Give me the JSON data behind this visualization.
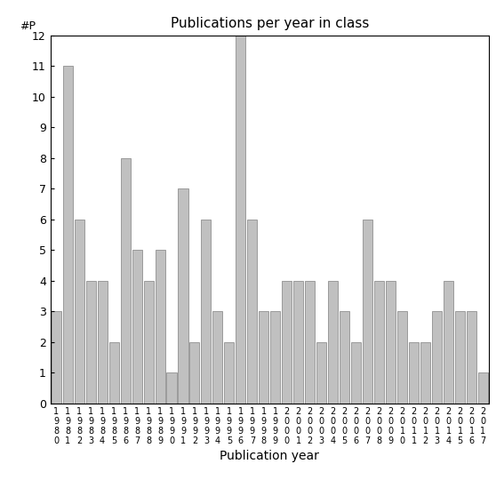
{
  "title": "Publications per year in class",
  "xlabel": "Publication year",
  "ylabel": "#P",
  "bar_color": "#c0c0c0",
  "edge_color": "#808080",
  "years": [
    1980,
    1981,
    1982,
    1983,
    1984,
    1985,
    1986,
    1987,
    1988,
    1989,
    1990,
    1991,
    1992,
    1993,
    1994,
    1995,
    1996,
    1997,
    1998,
    1999,
    2000,
    2001,
    2002,
    2003,
    2004,
    2005,
    2006,
    2007,
    2008,
    2009,
    2010,
    2011,
    2012,
    2013,
    2014,
    2015,
    2016,
    2017
  ],
  "values": [
    3,
    11,
    6,
    4,
    4,
    2,
    8,
    5,
    4,
    5,
    1,
    7,
    2,
    6,
    3,
    2,
    12,
    6,
    3,
    3,
    4,
    4,
    4,
    2,
    4,
    3,
    2,
    6,
    4,
    4,
    3,
    2,
    2,
    3,
    4,
    3,
    3,
    1
  ],
  "ylim": [
    0,
    12
  ],
  "yticks": [
    0,
    1,
    2,
    3,
    4,
    5,
    6,
    7,
    8,
    9,
    10,
    11,
    12
  ],
  "background_color": "#ffffff",
  "title_fontsize": 11,
  "axis_fontsize": 9,
  "label_fontsize": 10,
  "tick_label_fontsize": 7
}
